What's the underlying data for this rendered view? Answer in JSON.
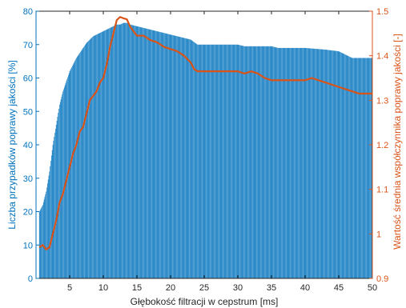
{
  "chart_data": {
    "type": "bar+line",
    "xlabel": "Głębokość filtracji w cepstrum [ms]",
    "ylabel_left": "Liczba przypadków poprawy jakości [%]",
    "ylabel_right": "Wartość średnia współczynnika poprawy jakości [-]",
    "xlim": [
      0,
      50
    ],
    "ylim_left": [
      0,
      80
    ],
    "ylim_right": [
      0.9,
      1.5
    ],
    "x_ticks": [
      5,
      10,
      15,
      20,
      25,
      30,
      35,
      40,
      45,
      50
    ],
    "y_left_ticks": [
      0,
      10,
      20,
      30,
      40,
      50,
      60,
      70,
      80
    ],
    "y_right_ticks": [
      0.9,
      1,
      1.1,
      1.2,
      1.3,
      1.4,
      1.5
    ],
    "x_tick_labels": [
      "5",
      "10",
      "15",
      "20",
      "25",
      "30",
      "35",
      "40",
      "45",
      "50"
    ],
    "y_left_tick_labels": [
      "0",
      "10",
      "20",
      "30",
      "40",
      "50",
      "60",
      "70",
      "80"
    ],
    "y_right_tick_labels": [
      "0.9",
      "1",
      "1.1",
      "1.2",
      "1.3",
      "1.4",
      "1.5"
    ],
    "grid": false,
    "bar_series": {
      "color": "#0072BD",
      "points": [
        [
          0.5,
          20
        ],
        [
          1,
          22
        ],
        [
          1.5,
          26
        ],
        [
          2,
          32
        ],
        [
          2.5,
          40
        ],
        [
          3,
          46
        ],
        [
          3.5,
          52
        ],
        [
          4,
          56
        ],
        [
          4.5,
          59
        ],
        [
          5,
          62
        ],
        [
          5.5,
          64
        ],
        [
          6,
          66
        ],
        [
          6.5,
          67.5
        ],
        [
          7,
          69
        ],
        [
          7.5,
          70.5
        ],
        [
          8,
          71.5
        ],
        [
          8.5,
          72.5
        ],
        [
          9,
          73
        ],
        [
          9.5,
          73.5
        ],
        [
          10,
          74
        ],
        [
          10.5,
          74.5
        ],
        [
          11,
          75
        ],
        [
          11.5,
          75.5
        ],
        [
          12,
          76
        ],
        [
          12.5,
          76
        ],
        [
          13,
          76.5
        ],
        [
          13.5,
          76.5
        ],
        [
          14,
          76
        ],
        [
          15,
          75.5
        ],
        [
          16,
          75
        ],
        [
          17,
          74.5
        ],
        [
          18,
          74
        ],
        [
          19,
          73.5
        ],
        [
          20,
          73
        ],
        [
          21,
          72.5
        ],
        [
          22,
          72
        ],
        [
          23,
          71.5
        ],
        [
          24,
          70
        ],
        [
          25,
          70
        ],
        [
          30,
          70
        ],
        [
          31,
          69.5
        ],
        [
          35,
          69.5
        ],
        [
          36,
          69
        ],
        [
          40,
          69
        ],
        [
          43,
          68.5
        ],
        [
          45,
          68
        ],
        [
          46,
          67
        ],
        [
          47,
          66
        ],
        [
          50,
          66
        ]
      ]
    },
    "line_series": {
      "color": "#D95319",
      "points": [
        [
          0.5,
          0.97
        ],
        [
          1,
          0.975
        ],
        [
          1.5,
          0.965
        ],
        [
          2,
          0.97
        ],
        [
          2.5,
          1.0
        ],
        [
          3,
          1.03
        ],
        [
          3.5,
          1.07
        ],
        [
          4,
          1.09
        ],
        [
          4.5,
          1.12
        ],
        [
          5,
          1.15
        ],
        [
          5.5,
          1.18
        ],
        [
          6,
          1.2
        ],
        [
          6.5,
          1.23
        ],
        [
          7,
          1.24
        ],
        [
          7.5,
          1.27
        ],
        [
          8,
          1.3
        ],
        [
          8.5,
          1.31
        ],
        [
          9,
          1.32
        ],
        [
          9.5,
          1.34
        ],
        [
          10,
          1.35
        ],
        [
          10.5,
          1.38
        ],
        [
          11,
          1.42
        ],
        [
          11.5,
          1.45
        ],
        [
          12,
          1.48
        ],
        [
          12.5,
          1.487
        ],
        [
          13,
          1.484
        ],
        [
          13.5,
          1.482
        ],
        [
          14,
          1.465
        ],
        [
          14.5,
          1.455
        ],
        [
          15,
          1.445
        ],
        [
          16,
          1.445
        ],
        [
          17,
          1.435
        ],
        [
          18,
          1.43
        ],
        [
          19,
          1.42
        ],
        [
          20,
          1.415
        ],
        [
          21,
          1.41
        ],
        [
          22,
          1.4
        ],
        [
          23,
          1.385
        ],
        [
          23.5,
          1.37
        ],
        [
          24,
          1.365
        ],
        [
          25,
          1.365
        ],
        [
          30,
          1.365
        ],
        [
          31,
          1.36
        ],
        [
          32,
          1.365
        ],
        [
          33,
          1.36
        ],
        [
          34,
          1.35
        ],
        [
          35,
          1.345
        ],
        [
          40,
          1.345
        ],
        [
          41,
          1.35
        ],
        [
          42,
          1.345
        ],
        [
          43,
          1.34
        ],
        [
          45,
          1.33
        ],
        [
          47,
          1.32
        ],
        [
          48,
          1.315
        ],
        [
          50,
          1.315
        ]
      ]
    }
  }
}
